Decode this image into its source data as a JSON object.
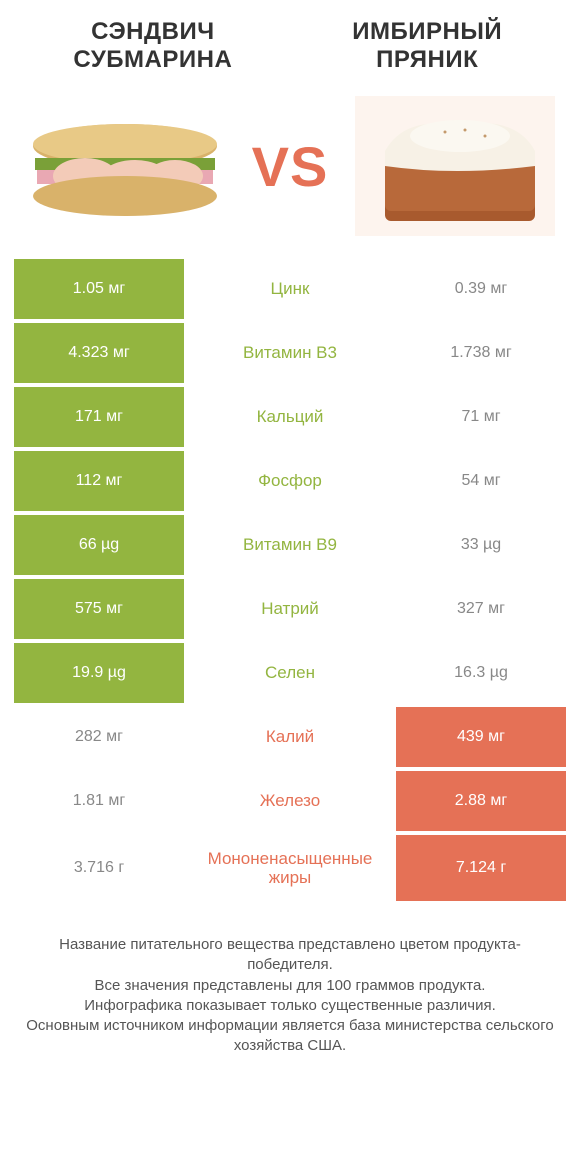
{
  "header": {
    "left_title": "СЭНДВИЧ СУБМАРИНА",
    "right_title": "ИМБИРНЫЙ ПРЯНИК"
  },
  "vs_label": "VS",
  "colors": {
    "left_win": "#93b540",
    "right_win": "#e57156",
    "lose_bg": "#ffffff",
    "lose_text": "#888888",
    "vs_text": "#e57156",
    "body_text": "#333333",
    "footer_text": "#555555"
  },
  "rows": [
    {
      "nutrient": "Цинк",
      "left": "1.05 мг",
      "right": "0.39 мг",
      "winner": "left"
    },
    {
      "nutrient": "Витамин B3",
      "left": "4.323 мг",
      "right": "1.738 мг",
      "winner": "left"
    },
    {
      "nutrient": "Кальций",
      "left": "171 мг",
      "right": "71 мг",
      "winner": "left"
    },
    {
      "nutrient": "Фосфор",
      "left": "112 мг",
      "right": "54 мг",
      "winner": "left"
    },
    {
      "nutrient": "Витамин B9",
      "left": "66 µg",
      "right": "33 µg",
      "winner": "left"
    },
    {
      "nutrient": "Натрий",
      "left": "575 мг",
      "right": "327 мг",
      "winner": "left"
    },
    {
      "nutrient": "Селен",
      "left": "19.9 µg",
      "right": "16.3 µg",
      "winner": "left"
    },
    {
      "nutrient": "Калий",
      "left": "282 мг",
      "right": "439 мг",
      "winner": "right"
    },
    {
      "nutrient": "Железо",
      "left": "1.81 мг",
      "right": "2.88 мг",
      "winner": "right"
    },
    {
      "nutrient": "Мононенасыщенные жиры",
      "left": "3.716 г",
      "right": "7.124 г",
      "winner": "right"
    }
  ],
  "footer": {
    "line1": "Название питательного вещества представлено цветом продукта-победителя.",
    "line2": "Все значения представлены для 100 граммов продукта.",
    "line3": "Инфографика показывает только существенные различия.",
    "line4": "Основным источником информации является база министерства сельского хозяйства США."
  },
  "typography": {
    "title_fontsize": 24,
    "vs_fontsize": 56,
    "cell_fontsize": 16,
    "nutrient_fontsize": 17,
    "footer_fontsize": 15
  }
}
